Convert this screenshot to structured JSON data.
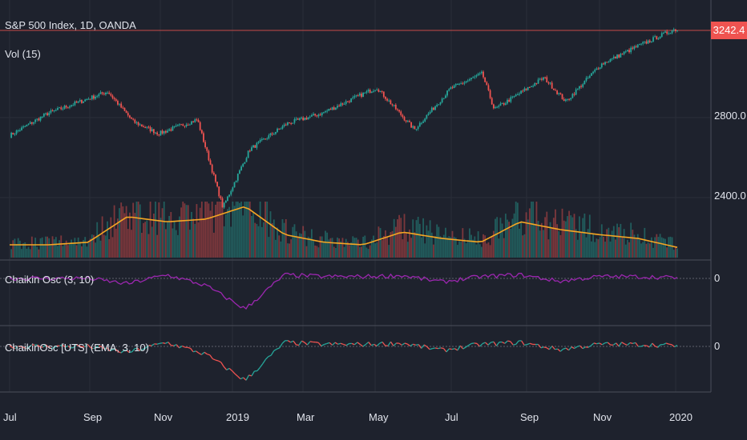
{
  "header": {
    "title": "S&P 500 Index, 1D, OANDA",
    "volume_label": "Vol (15)"
  },
  "price_tag": "3242.4",
  "price_axis": {
    "ticks": [
      "2800.0",
      "2400.0"
    ]
  },
  "indicators": [
    {
      "label": "Chaikin Osc (3, 10)",
      "zero_label": "0"
    },
    {
      "label": "ChaikinOsc [UTS] (EMA, 3, 10)",
      "zero_label": "0"
    }
  ],
  "time_axis": {
    "ticks": [
      "Jul",
      "Sep",
      "Nov",
      "2019",
      "Mar",
      "May",
      "Jul",
      "Sep",
      "Nov",
      "2020"
    ]
  },
  "colors": {
    "background": "#1e222d",
    "up": "#26a69a",
    "down": "#ef5350",
    "volume_ma": "#f5a623",
    "chaikin": "#9c27b0",
    "grid": "#2a2e39",
    "price_line": "#ef5350"
  },
  "chart_data": {
    "type": "line",
    "title": "S&P 500 Index, 1D, OANDA",
    "x_range": [
      "2018-07",
      "2020-01"
    ],
    "ylim": [
      2300,
      3300
    ],
    "last_price": 3242.4,
    "price_series": {
      "name": "S&P 500 Index",
      "x": [
        "2018-07-01",
        "2018-08-01",
        "2018-09-20",
        "2018-10-11",
        "2018-11-01",
        "2018-12-03",
        "2018-12-24",
        "2019-01-15",
        "2019-02-15",
        "2019-03-15",
        "2019-04-30",
        "2019-05-31",
        "2019-06-30",
        "2019-07-26",
        "2019-08-05",
        "2019-09-15",
        "2019-10-03",
        "2019-11-01",
        "2019-11-29",
        "2019-12-31"
      ],
      "values": [
        2710,
        2820,
        2930,
        2780,
        2720,
        2790,
        2350,
        2640,
        2770,
        2820,
        2950,
        2740,
        2945,
        3020,
        2840,
        3000,
        2880,
        3066,
        3150,
        3240
      ]
    },
    "volume_ma_profile": [
      0.1,
      0.1,
      0.12,
      0.32,
      0.28,
      0.3,
      0.4,
      0.18,
      0.12,
      0.1,
      0.2,
      0.15,
      0.12,
      0.28,
      0.22,
      0.18,
      0.15,
      0.08
    ],
    "chaikin_profile": [
      0.0,
      0.0,
      0.0,
      -0.15,
      0.1,
      -0.2,
      -0.85,
      0.1,
      0.05,
      0.05,
      0.08,
      -0.1,
      0.05,
      0.1,
      -0.08,
      0.05,
      0.05,
      0.02
    ]
  }
}
